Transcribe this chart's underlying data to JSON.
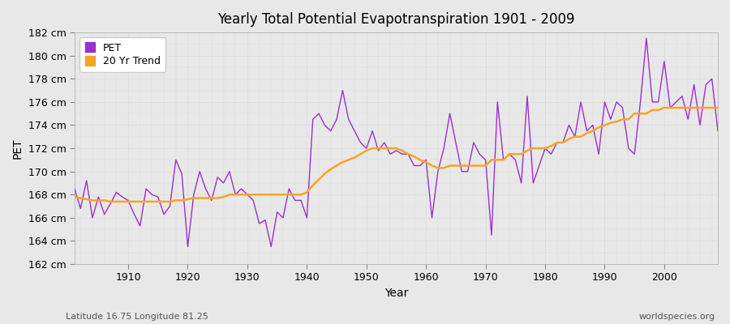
{
  "title": "Yearly Total Potential Evapotranspiration 1901 - 2009",
  "xlabel": "Year",
  "ylabel": "PET",
  "subtitle_left": "Latitude 16.75 Longitude 81.25",
  "subtitle_right": "worldspecies.org",
  "pet_color": "#9b30d0",
  "trend_color": "#f5a623",
  "background_color": "#e8e8e8",
  "plot_bg_color": "#e8e8e8",
  "grid_color": "#c8c8c8",
  "ylim": [
    162,
    182
  ],
  "xlim": [
    1901,
    2009
  ],
  "yticks": [
    162,
    164,
    166,
    168,
    170,
    172,
    174,
    176,
    178,
    180,
    182
  ],
  "pet_data": [
    [
      1901,
      168.5
    ],
    [
      1902,
      166.8
    ],
    [
      1903,
      169.2
    ],
    [
      1904,
      166.0
    ],
    [
      1905,
      167.8
    ],
    [
      1906,
      166.3
    ],
    [
      1907,
      167.2
    ],
    [
      1908,
      168.2
    ],
    [
      1909,
      167.8
    ],
    [
      1910,
      167.5
    ],
    [
      1911,
      166.3
    ],
    [
      1912,
      165.3
    ],
    [
      1913,
      168.5
    ],
    [
      1914,
      168.0
    ],
    [
      1915,
      167.8
    ],
    [
      1916,
      166.3
    ],
    [
      1917,
      167.0
    ],
    [
      1918,
      171.0
    ],
    [
      1919,
      169.8
    ],
    [
      1920,
      163.5
    ],
    [
      1921,
      168.0
    ],
    [
      1922,
      170.0
    ],
    [
      1923,
      168.5
    ],
    [
      1924,
      167.5
    ],
    [
      1925,
      169.5
    ],
    [
      1926,
      169.0
    ],
    [
      1927,
      170.0
    ],
    [
      1928,
      168.0
    ],
    [
      1929,
      168.5
    ],
    [
      1930,
      168.0
    ],
    [
      1931,
      167.5
    ],
    [
      1932,
      165.5
    ],
    [
      1933,
      165.8
    ],
    [
      1934,
      163.5
    ],
    [
      1935,
      166.5
    ],
    [
      1936,
      166.0
    ],
    [
      1937,
      168.5
    ],
    [
      1938,
      167.5
    ],
    [
      1939,
      167.5
    ],
    [
      1940,
      166.0
    ],
    [
      1941,
      174.5
    ],
    [
      1942,
      175.0
    ],
    [
      1943,
      174.0
    ],
    [
      1944,
      173.5
    ],
    [
      1945,
      174.5
    ],
    [
      1946,
      177.0
    ],
    [
      1947,
      174.5
    ],
    [
      1948,
      173.5
    ],
    [
      1949,
      172.5
    ],
    [
      1950,
      172.0
    ],
    [
      1951,
      173.5
    ],
    [
      1952,
      171.8
    ],
    [
      1953,
      172.5
    ],
    [
      1954,
      171.5
    ],
    [
      1955,
      171.8
    ],
    [
      1956,
      171.5
    ],
    [
      1957,
      171.5
    ],
    [
      1958,
      170.5
    ],
    [
      1959,
      170.5
    ],
    [
      1960,
      171.0
    ],
    [
      1961,
      166.0
    ],
    [
      1962,
      170.0
    ],
    [
      1963,
      172.0
    ],
    [
      1964,
      175.0
    ],
    [
      1965,
      172.5
    ],
    [
      1966,
      170.0
    ],
    [
      1967,
      170.0
    ],
    [
      1968,
      172.5
    ],
    [
      1969,
      171.5
    ],
    [
      1970,
      171.0
    ],
    [
      1971,
      164.5
    ],
    [
      1972,
      176.0
    ],
    [
      1973,
      171.0
    ],
    [
      1974,
      171.5
    ],
    [
      1975,
      171.0
    ],
    [
      1976,
      169.0
    ],
    [
      1977,
      176.5
    ],
    [
      1978,
      169.0
    ],
    [
      1979,
      170.5
    ],
    [
      1980,
      172.0
    ],
    [
      1981,
      171.5
    ],
    [
      1982,
      172.5
    ],
    [
      1983,
      172.5
    ],
    [
      1984,
      174.0
    ],
    [
      1985,
      173.0
    ],
    [
      1986,
      176.0
    ],
    [
      1987,
      173.5
    ],
    [
      1988,
      174.0
    ],
    [
      1989,
      171.5
    ],
    [
      1990,
      176.0
    ],
    [
      1991,
      174.5
    ],
    [
      1992,
      176.0
    ],
    [
      1993,
      175.5
    ],
    [
      1994,
      172.0
    ],
    [
      1995,
      171.5
    ],
    [
      1996,
      176.0
    ],
    [
      1997,
      181.5
    ],
    [
      1998,
      176.0
    ],
    [
      1999,
      176.0
    ],
    [
      2000,
      179.5
    ],
    [
      2001,
      175.5
    ],
    [
      2002,
      176.0
    ],
    [
      2003,
      176.5
    ],
    [
      2004,
      174.5
    ],
    [
      2005,
      177.5
    ],
    [
      2006,
      174.0
    ],
    [
      2007,
      177.5
    ],
    [
      2008,
      178.0
    ],
    [
      2009,
      173.5
    ]
  ],
  "trend_data": [
    [
      1901,
      167.8
    ],
    [
      1902,
      167.7
    ],
    [
      1903,
      167.6
    ],
    [
      1904,
      167.5
    ],
    [
      1905,
      167.5
    ],
    [
      1906,
      167.5
    ],
    [
      1907,
      167.4
    ],
    [
      1908,
      167.4
    ],
    [
      1909,
      167.4
    ],
    [
      1910,
      167.4
    ],
    [
      1911,
      167.4
    ],
    [
      1912,
      167.4
    ],
    [
      1913,
      167.4
    ],
    [
      1914,
      167.4
    ],
    [
      1915,
      167.4
    ],
    [
      1916,
      167.4
    ],
    [
      1917,
      167.4
    ],
    [
      1918,
      167.5
    ],
    [
      1919,
      167.5
    ],
    [
      1920,
      167.6
    ],
    [
      1921,
      167.7
    ],
    [
      1922,
      167.7
    ],
    [
      1923,
      167.7
    ],
    [
      1924,
      167.7
    ],
    [
      1925,
      167.7
    ],
    [
      1926,
      167.8
    ],
    [
      1927,
      168.0
    ],
    [
      1928,
      168.0
    ],
    [
      1929,
      168.0
    ],
    [
      1930,
      168.0
    ],
    [
      1931,
      168.0
    ],
    [
      1932,
      168.0
    ],
    [
      1933,
      168.0
    ],
    [
      1934,
      168.0
    ],
    [
      1935,
      168.0
    ],
    [
      1936,
      168.0
    ],
    [
      1937,
      168.0
    ],
    [
      1938,
      168.0
    ],
    [
      1939,
      168.0
    ],
    [
      1940,
      168.2
    ],
    [
      1941,
      168.8
    ],
    [
      1942,
      169.3
    ],
    [
      1943,
      169.8
    ],
    [
      1944,
      170.2
    ],
    [
      1945,
      170.5
    ],
    [
      1946,
      170.8
    ],
    [
      1947,
      171.0
    ],
    [
      1948,
      171.2
    ],
    [
      1949,
      171.5
    ],
    [
      1950,
      171.8
    ],
    [
      1951,
      172.0
    ],
    [
      1952,
      172.0
    ],
    [
      1953,
      172.0
    ],
    [
      1954,
      172.0
    ],
    [
      1955,
      172.0
    ],
    [
      1956,
      171.8
    ],
    [
      1957,
      171.5
    ],
    [
      1958,
      171.3
    ],
    [
      1959,
      171.0
    ],
    [
      1960,
      170.8
    ],
    [
      1961,
      170.5
    ],
    [
      1962,
      170.3
    ],
    [
      1963,
      170.3
    ],
    [
      1964,
      170.5
    ],
    [
      1965,
      170.5
    ],
    [
      1966,
      170.5
    ],
    [
      1967,
      170.5
    ],
    [
      1968,
      170.5
    ],
    [
      1969,
      170.5
    ],
    [
      1970,
      170.5
    ],
    [
      1971,
      171.0
    ],
    [
      1972,
      171.0
    ],
    [
      1973,
      171.0
    ],
    [
      1974,
      171.5
    ],
    [
      1975,
      171.5
    ],
    [
      1976,
      171.5
    ],
    [
      1977,
      171.8
    ],
    [
      1978,
      172.0
    ],
    [
      1979,
      172.0
    ],
    [
      1980,
      172.0
    ],
    [
      1981,
      172.2
    ],
    [
      1982,
      172.5
    ],
    [
      1983,
      172.5
    ],
    [
      1984,
      172.8
    ],
    [
      1985,
      173.0
    ],
    [
      1986,
      173.0
    ],
    [
      1987,
      173.3
    ],
    [
      1988,
      173.5
    ],
    [
      1989,
      173.8
    ],
    [
      1990,
      174.0
    ],
    [
      1991,
      174.2
    ],
    [
      1992,
      174.3
    ],
    [
      1993,
      174.5
    ],
    [
      1994,
      174.5
    ],
    [
      1995,
      175.0
    ],
    [
      1996,
      175.0
    ],
    [
      1997,
      175.0
    ],
    [
      1998,
      175.3
    ],
    [
      1999,
      175.3
    ],
    [
      2000,
      175.5
    ],
    [
      2001,
      175.5
    ],
    [
      2002,
      175.5
    ],
    [
      2003,
      175.5
    ],
    [
      2004,
      175.5
    ],
    [
      2005,
      175.5
    ],
    [
      2006,
      175.5
    ],
    [
      2007,
      175.5
    ],
    [
      2008,
      175.5
    ],
    [
      2009,
      175.5
    ]
  ]
}
